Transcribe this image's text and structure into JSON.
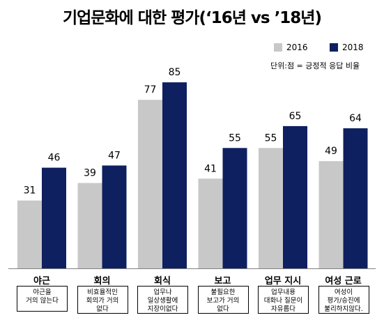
{
  "title": "기업문화에 대한 평가(‘16년 vs ’18년)",
  "unit_note": "단위:점 = 긍정적  응답 비율",
  "colors": {
    "2016": "#c8c8c8",
    "2018": "#0e2060"
  },
  "chart_data": {
    "type": "bar",
    "title": "기업문화에 대한 평가(‘16년 vs ’18년)",
    "categories": [
      "야근",
      "회의",
      "회식",
      "보고",
      "업무 지시",
      "여성 근로"
    ],
    "descriptions": [
      "야근을\n거의 않는다",
      "비효율적인\n회의가 거의\n없다",
      "업무나\n일상생활에\n지장이없다",
      "불필요한\n보고가 거의\n없다",
      "업무내용\n대화나 질문이\n자유롭다",
      "여성이\n평가/승진에\n불리하지않다."
    ],
    "series": [
      {
        "name": "2016",
        "values": [
          31,
          39,
          77,
          41,
          55,
          49
        ]
      },
      {
        "name": "2018",
        "values": [
          46,
          47,
          85,
          55,
          65,
          64
        ]
      }
    ],
    "ylim": [
      0,
      100
    ],
    "legend": "top-right",
    "grid": false
  }
}
